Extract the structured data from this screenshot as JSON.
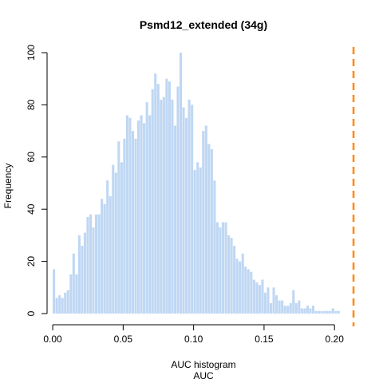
{
  "chart_data": {
    "type": "bar",
    "title": "Psmd12_extended (34g)",
    "xlabel_line1": "AUC histogram",
    "xlabel_line2": "AUC",
    "ylabel": "Frequency",
    "xlim": [
      -0.004,
      0.218
    ],
    "ylim": [
      0,
      100
    ],
    "x_ticks": [
      0.0,
      0.05,
      0.1,
      0.15,
      0.2
    ],
    "x_tick_labels": [
      "0.00",
      "0.05",
      "0.10",
      "0.15",
      "0.20"
    ],
    "y_ticks": [
      0,
      20,
      40,
      60,
      80,
      100
    ],
    "y_tick_labels": [
      "0",
      "20",
      "40",
      "60",
      "80",
      "100"
    ],
    "bin_start": 0.0,
    "bin_width": 0.002,
    "bar_color": "#bfd7f3",
    "reference_line": {
      "x": 0.2135,
      "color": "#ff8c1a"
    },
    "values": [
      17,
      6,
      7,
      6,
      8,
      9,
      15,
      23,
      15,
      30,
      26,
      31,
      37,
      38,
      33,
      38,
      38,
      44,
      42,
      51,
      45,
      57,
      54,
      66,
      58,
      67,
      76,
      75,
      70,
      67,
      74,
      76,
      73,
      81,
      76,
      86,
      92,
      88,
      82,
      83,
      90,
      89,
      82,
      72,
      87,
      100,
      79,
      75,
      82,
      80,
      55,
      58,
      56,
      70,
      72,
      65,
      63,
      51,
      35,
      33,
      35,
      35,
      30,
      29,
      26,
      21,
      20,
      23,
      18,
      17,
      16,
      13,
      12,
      11,
      13,
      8,
      10,
      4,
      10,
      7,
      5,
      5,
      3,
      3,
      4,
      9,
      4,
      5,
      2,
      2,
      3,
      2,
      3,
      1,
      1,
      1,
      1,
      1,
      1,
      2,
      1,
      1
    ]
  }
}
